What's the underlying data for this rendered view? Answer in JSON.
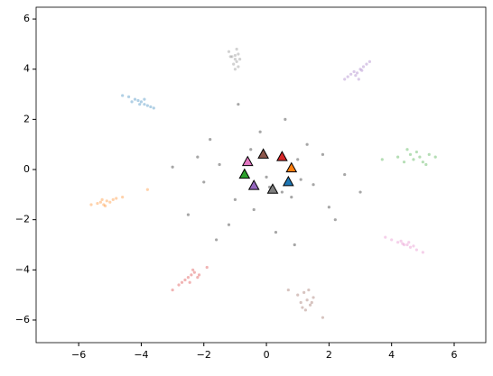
{
  "chart_data": {
    "type": "scatter",
    "xlim": [
      -7.36,
      7.01
    ],
    "ylim": [
      -6.9,
      6.47
    ],
    "xticks": [
      {
        "value": -6,
        "label": "−6"
      },
      {
        "value": -4,
        "label": "−4"
      },
      {
        "value": -2,
        "label": "−2"
      },
      0,
      2,
      4,
      6
    ],
    "yticks": [
      {
        "value": -6,
        "label": "−6"
      },
      {
        "value": -4,
        "label": "−4"
      },
      {
        "value": -2,
        "label": "−2"
      },
      0,
      2,
      4,
      6
    ],
    "series": [
      {
        "color": "#000000",
        "marker": "dot",
        "x": [
          -2,
          -1.5,
          -1,
          -0.5,
          0,
          0.5,
          1,
          1.5,
          2,
          2.5,
          -2.5,
          -1.8,
          -1.2,
          -0.7,
          -0.2,
          0.3,
          0.8,
          1.3,
          1.8,
          -3,
          3,
          -0.4,
          0.6,
          1.1,
          -1.6,
          0.1,
          2.2,
          -2.2,
          -0.9,
          0.9
        ],
        "y": [
          -0.5,
          0.2,
          -1.2,
          0.8,
          -0.3,
          -0.9,
          0.4,
          -0.6,
          -1.5,
          -0.2,
          -1.8,
          1.2,
          -2.2,
          -0.1,
          1.5,
          -2.5,
          -1.1,
          1.0,
          0.6,
          0.1,
          -0.9,
          -1.6,
          2.0,
          -0.4,
          -2.8,
          -0.7,
          -2.0,
          0.5,
          2.6,
          -3.0
        ]
      },
      {
        "color": "#1f77b4",
        "marker": "dot",
        "x": [
          -4.6,
          -4.4,
          -4.2,
          -4.1,
          -4.0,
          -3.9,
          -3.8,
          -3.7,
          -3.6,
          -4.3,
          -3.9,
          -4.05
        ],
        "y": [
          2.95,
          2.9,
          2.8,
          2.75,
          2.7,
          2.6,
          2.55,
          2.5,
          2.45,
          2.7,
          2.8,
          2.6
        ]
      },
      {
        "color": "#ff7f0e",
        "marker": "dot",
        "x": [
          -5.6,
          -5.4,
          -5.3,
          -5.2,
          -5.1,
          -5.0,
          -4.9,
          -4.8,
          -5.25,
          -5.15,
          -4.6,
          -3.8
        ],
        "y": [
          -1.4,
          -1.35,
          -1.3,
          -1.4,
          -1.25,
          -1.3,
          -1.2,
          -1.15,
          -1.2,
          -1.45,
          -1.1,
          -0.8
        ]
      },
      {
        "color": "#2ca02c",
        "marker": "dot",
        "x": [
          4.2,
          4.4,
          4.6,
          4.7,
          4.8,
          4.9,
          5.0,
          5.2,
          5.4,
          4.5,
          5.1,
          3.7
        ],
        "y": [
          0.5,
          0.3,
          0.6,
          0.4,
          0.7,
          0.5,
          0.3,
          0.6,
          0.5,
          0.8,
          0.2,
          0.4
        ]
      },
      {
        "color": "#d62728",
        "marker": "dot",
        "x": [
          -2.8,
          -2.6,
          -2.5,
          -2.4,
          -2.3,
          -2.2,
          -2.45,
          -2.35,
          -2.7,
          -2.15,
          -3.0,
          -1.9
        ],
        "y": [
          -4.6,
          -4.4,
          -4.3,
          -4.2,
          -4.1,
          -4.3,
          -4.5,
          -4.0,
          -4.5,
          -4.2,
          -4.8,
          -3.9
        ]
      },
      {
        "color": "#9467bd",
        "marker": "dot",
        "x": [
          2.5,
          2.7,
          2.8,
          2.9,
          3.0,
          3.1,
          3.2,
          2.6,
          2.85,
          3.05,
          2.95,
          3.3
        ],
        "y": [
          3.6,
          3.8,
          3.9,
          3.85,
          4.0,
          4.1,
          4.2,
          3.7,
          3.75,
          3.95,
          3.6,
          4.3
        ]
      },
      {
        "color": "#8c564b",
        "marker": "dot",
        "x": [
          1.0,
          1.1,
          1.2,
          1.3,
          1.4,
          1.5,
          1.25,
          1.35,
          1.15,
          1.45,
          0.7,
          1.8
        ],
        "y": [
          -5.0,
          -5.3,
          -4.9,
          -5.2,
          -5.4,
          -5.1,
          -5.6,
          -4.8,
          -5.5,
          -5.3,
          -4.8,
          -5.9
        ]
      },
      {
        "color": "#e377c2",
        "marker": "dot",
        "x": [
          4.0,
          4.2,
          4.3,
          4.4,
          4.5,
          4.6,
          4.7,
          4.8,
          4.35,
          4.55,
          3.8,
          5.0
        ],
        "y": [
          -2.8,
          -2.9,
          -2.85,
          -3.0,
          -3.0,
          -3.1,
          -3.05,
          -3.2,
          -2.95,
          -2.9,
          -2.7,
          -3.3
        ]
      },
      {
        "color": "#7f7f7f",
        "marker": "dot",
        "x": [
          -1.2,
          -1.1,
          -1.0,
          -0.95,
          -0.9,
          -1.05,
          -0.85,
          -1.15,
          -1.0,
          -0.95,
          -0.9,
          -1.0
        ],
        "y": [
          4.7,
          4.5,
          4.4,
          4.3,
          4.6,
          4.2,
          4.4,
          4.5,
          4.0,
          4.8,
          4.1,
          4.55
        ]
      },
      {
        "marker": "triangle",
        "colors": [
          "#e377c2",
          "#8c564b",
          "#d62728",
          "#ff7f0e",
          "#2ca02c",
          "#9467bd",
          "#7f7f7f",
          "#1f77b4"
        ],
        "x": [
          -0.6,
          -0.1,
          0.5,
          0.8,
          -0.7,
          -0.4,
          0.2,
          0.7
        ],
        "y": [
          0.3,
          0.6,
          0.5,
          0.05,
          -0.2,
          -0.65,
          -0.8,
          -0.5
        ]
      }
    ]
  }
}
